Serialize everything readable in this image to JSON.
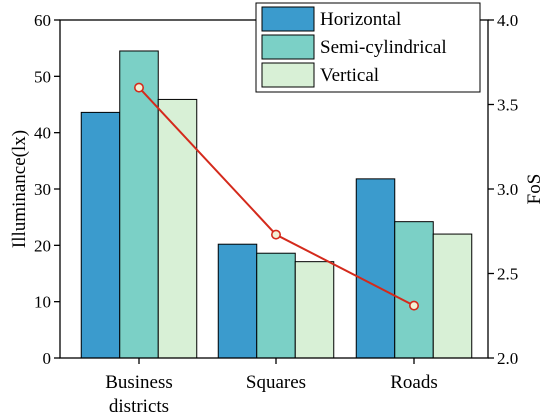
{
  "chart_data": {
    "type": "bar",
    "categories": [
      "Business districts",
      "Squares",
      "Roads"
    ],
    "category_lines": [
      [
        "Business",
        "districts"
      ],
      [
        "Squares"
      ],
      [
        "Roads"
      ]
    ],
    "series": [
      {
        "name": "Horizontal",
        "values": [
          43.6,
          20.2,
          31.8
        ],
        "color": "#3b9bcd"
      },
      {
        "name": "Semi-cylindrical",
        "values": [
          54.5,
          18.6,
          24.2
        ],
        "color": "#7bd0c6"
      },
      {
        "name": "Vertical",
        "values": [
          45.9,
          17.1,
          22.0
        ],
        "color": "#d8f0d6"
      }
    ],
    "line_series": {
      "name": "FoS",
      "values": [
        3.6,
        2.73,
        2.31
      ],
      "color": "#d42a1c",
      "marker_fill": "#f2f0d5",
      "axis": "right"
    },
    "ylabel": "Illuminance(lx)",
    "y2label": "FoS",
    "ylim": [
      0,
      60
    ],
    "y2lim": [
      2.0,
      4.0
    ],
    "yticks": [
      0,
      10,
      20,
      30,
      40,
      50,
      60
    ],
    "y2ticks": [
      2.0,
      2.5,
      3.0,
      3.5,
      4.0
    ],
    "y2tick_labels": [
      "2.0",
      "2.5",
      "3.0",
      "3.5",
      "4.0"
    ],
    "grid": false,
    "legend_position": "top-right"
  }
}
